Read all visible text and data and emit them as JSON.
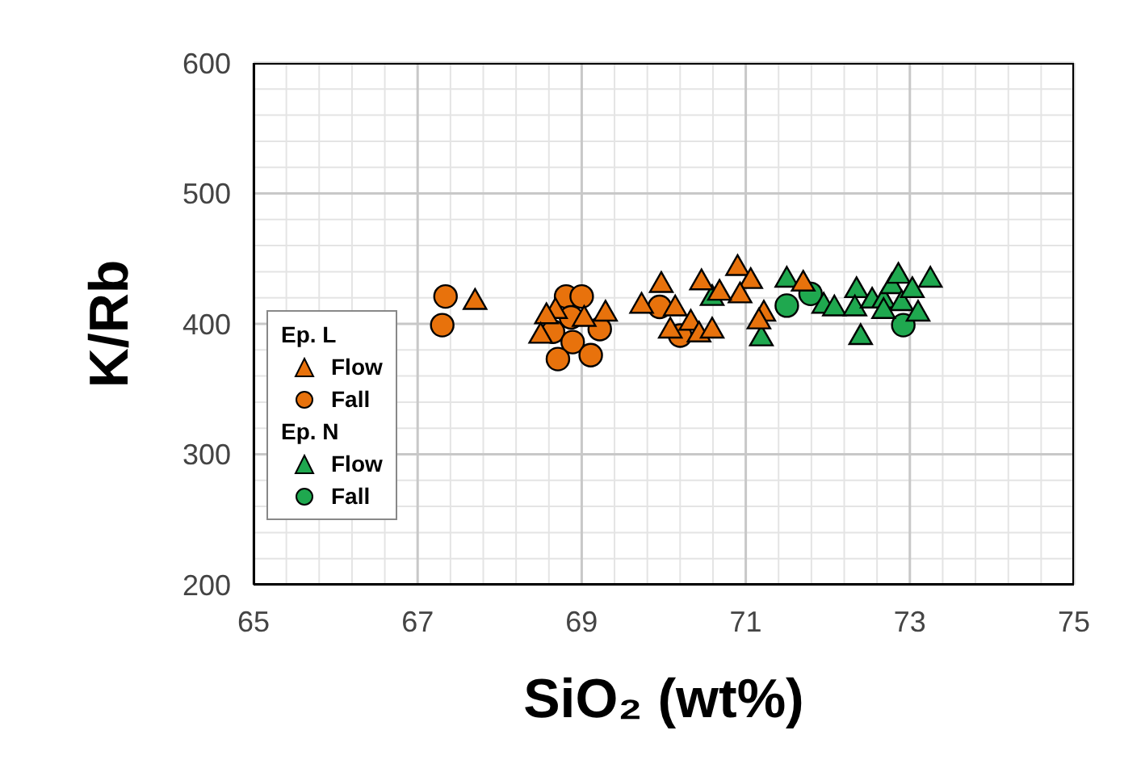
{
  "chart_data": {
    "type": "scatter",
    "xlabel": "SiO₂ (wt%)",
    "ylabel": "K/Rb",
    "xlim": [
      65,
      75
    ],
    "xticks": [
      65,
      67,
      69,
      71,
      73,
      75
    ],
    "ylim": [
      200,
      600
    ],
    "yticks": [
      200,
      300,
      400,
      500,
      600
    ],
    "grid": true,
    "legend": "bottom left",
    "annotations": [
      "Ep. L",
      "Ep. N"
    ],
    "series": [
      {
        "name": "Flow",
        "color": "#e8720c",
        "marker": "triangle",
        "x": [
          67.7,
          69.29,
          69.03,
          68.68,
          68.57,
          68.5,
          69.73,
          69.97,
          70.14,
          70.33,
          70.43,
          70.46,
          70.59,
          70.08,
          70.9,
          71.06,
          70.93,
          70.68,
          71.22,
          71.16,
          71.7
        ],
        "values": [
          418,
          409,
          405,
          411,
          407,
          392,
          415,
          431,
          413,
          402,
          393,
          433,
          396,
          396,
          444,
          434,
          423,
          425,
          409,
          403,
          432
        ]
      },
      {
        "name": "Fall",
        "color": "#e8720c",
        "marker": "circle",
        "x": [
          67.34,
          67.3,
          68.81,
          69.0,
          68.87,
          68.65,
          68.89,
          68.71,
          69.11,
          69.22,
          69.95,
          70.2
        ],
        "values": [
          421,
          399,
          421,
          421,
          405,
          394,
          386,
          373,
          376,
          396,
          413,
          391
        ]
      },
      {
        "name": "Flow",
        "color": "#1fa84f",
        "marker": "triangle",
        "x": [
          70.59,
          71.19,
          71.5,
          71.95,
          72.08,
          72.35,
          72.33,
          72.4,
          72.54,
          72.68,
          72.78,
          72.86,
          72.9,
          73.03,
          73.1,
          73.25,
          72.68
        ],
        "values": [
          421,
          390,
          435,
          415,
          413,
          427,
          413,
          391,
          419,
          419,
          430,
          438,
          417,
          427,
          409,
          435,
          411
        ]
      },
      {
        "name": "Fall",
        "color": "#1fa84f",
        "marker": "circle",
        "x": [
          71.5,
          71.79,
          72.92
        ],
        "values": [
          414,
          423,
          399
        ]
      }
    ]
  }
}
